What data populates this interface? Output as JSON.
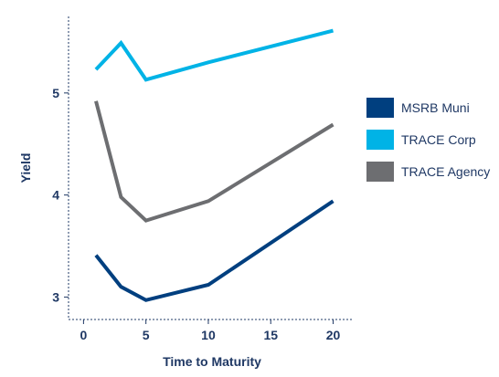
{
  "chart_data": {
    "type": "line",
    "title": "",
    "xlabel": "Time to Maturity",
    "ylabel": "Yield",
    "xlim": [
      -1.2,
      21.5
    ],
    "ylim": [
      2.78,
      5.75
    ],
    "xticks": [
      0,
      5,
      10,
      15,
      20
    ],
    "yticks": [
      3,
      4,
      5
    ],
    "grid": false,
    "legend_position": "right",
    "series": [
      {
        "name": "MSRB Muni",
        "color": "#003f7f",
        "points": [
          [
            1,
            3.41
          ],
          [
            3,
            3.1
          ],
          [
            5,
            2.97
          ],
          [
            10,
            3.12
          ],
          [
            20,
            3.94
          ]
        ]
      },
      {
        "name": "TRACE Corp",
        "color": "#00b3e6",
        "points": [
          [
            1,
            5.23
          ],
          [
            3,
            5.49
          ],
          [
            5,
            5.13
          ],
          [
            10,
            5.3
          ],
          [
            20,
            5.61
          ]
        ]
      },
      {
        "name": "TRACE Agency",
        "color": "#6d6e71",
        "points": [
          [
            1,
            4.92
          ],
          [
            3,
            3.98
          ],
          [
            5,
            3.75
          ],
          [
            10,
            3.94
          ],
          [
            20,
            4.69
          ]
        ]
      }
    ]
  }
}
